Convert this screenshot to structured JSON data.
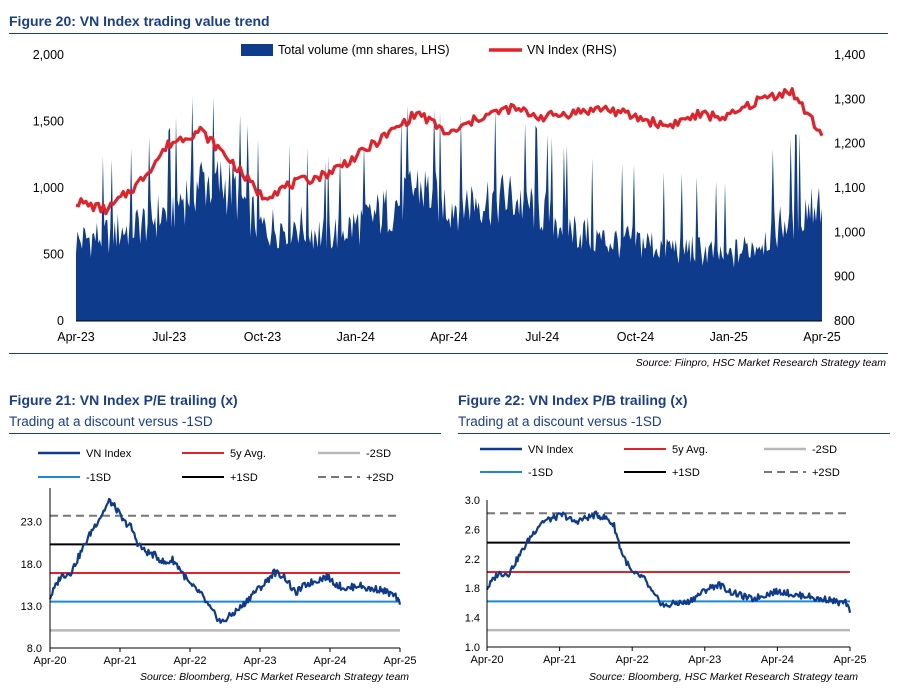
{
  "fig20": {
    "title": "Figure 20: VN Index trading value trend",
    "source": "Source: Fiinpro, HSC Market Research Strategy team"
  },
  "fig21": {
    "title": "Figure 21: VN Index P/E trailing (x)",
    "subtitle": "Trading at a discount versus -1SD",
    "source": "Source: Bloomberg, HSC Market Research Strategy team"
  },
  "fig22": {
    "title": "Figure 22: VN Index P/B trailing (x)",
    "subtitle": "Trading at a discount versus -1SD",
    "source": "Source: Bloomberg, HSC Market Research Strategy team"
  },
  "chart_data": [
    {
      "id": "fig20",
      "type": "area",
      "title": "Figure 20: VN Index trading value trend",
      "x_ticks": [
        "Apr-23",
        "Jul-23",
        "Oct-23",
        "Jan-24",
        "Apr-24",
        "Jul-24",
        "Oct-24",
        "Jan-25",
        "Apr-25"
      ],
      "left_ticks": [
        "0",
        "500",
        "1,000",
        "1,500",
        "2,000"
      ],
      "right_ticks": [
        "800",
        "900",
        "1,000",
        "1,100",
        "1,200",
        "1,300",
        "1,400"
      ],
      "ylim_left": [
        0,
        2000
      ],
      "ylim_right": [
        800,
        1400
      ],
      "legend_position": "top",
      "colors": {
        "volume": "#0f3b8c",
        "index": "#e0232a"
      },
      "series": [
        {
          "name": "Total volume (mn shares, LHS)",
          "axis": "left",
          "x": [
            "2023-04",
            "2023-05",
            "2023-06",
            "2023-07",
            "2023-08",
            "2023-09",
            "2023-10",
            "2023-11",
            "2023-12",
            "2024-01",
            "2024-02",
            "2024-03",
            "2024-04",
            "2024-05",
            "2024-06",
            "2024-07",
            "2024-08",
            "2024-09",
            "2024-10",
            "2024-11",
            "2024-12",
            "2025-01",
            "2025-02",
            "2025-03",
            "2025-04"
          ],
          "values": [
            650,
            700,
            780,
            900,
            1150,
            1100,
            750,
            800,
            700,
            780,
            900,
            1100,
            950,
            1000,
            1000,
            900,
            750,
            650,
            650,
            600,
            580,
            520,
            650,
            850,
            1000
          ]
        },
        {
          "name": "VN Index (RHS)",
          "axis": "right",
          "x": [
            "2023-04",
            "2023-05",
            "2023-06",
            "2023-07",
            "2023-08",
            "2023-09",
            "2023-10",
            "2023-11",
            "2023-12",
            "2024-01",
            "2024-02",
            "2024-03",
            "2024-04",
            "2024-05",
            "2024-06",
            "2024-07",
            "2024-08",
            "2024-09",
            "2024-10",
            "2024-11",
            "2024-12",
            "2025-01",
            "2025-02",
            "2025-03",
            "2025-04"
          ],
          "values": [
            1070,
            1050,
            1110,
            1200,
            1230,
            1160,
            1080,
            1110,
            1130,
            1170,
            1220,
            1270,
            1220,
            1260,
            1280,
            1260,
            1270,
            1280,
            1260,
            1240,
            1265,
            1260,
            1300,
            1320,
            1220
          ]
        }
      ]
    },
    {
      "id": "fig21",
      "type": "line",
      "title": "Figure 21: VN Index P/E trailing (x)",
      "x_ticks": [
        "Apr-20",
        "Apr-21",
        "Apr-22",
        "Apr-23",
        "Apr-24",
        "Apr-25"
      ],
      "y_ticks": [
        "8.0",
        "13.0",
        "18.0",
        "23.0"
      ],
      "ylim": [
        8,
        27
      ],
      "legend_position": "top",
      "colors": {
        "vn": "#0f3b8c",
        "avg": "#e0232a",
        "m2sd": "#b8b8b8",
        "m1sd": "#1a8ad1",
        "p1sd": "#000000",
        "p2sd": "#777777"
      },
      "bands": {
        "avg": 16.9,
        "m1sd": 13.5,
        "m2sd": 10.1,
        "p1sd": 20.3,
        "p2sd": 23.7
      },
      "series": [
        {
          "name": "VN Index",
          "x": [
            2020.25,
            2020.4,
            2020.55,
            2020.7,
            2020.85,
            2021.0,
            2021.1,
            2021.2,
            2021.3,
            2021.4,
            2021.5,
            2021.6,
            2021.75,
            2021.9,
            2022.0,
            2022.1,
            2022.25,
            2022.4,
            2022.55,
            2022.7,
            2022.85,
            2023.0,
            2023.15,
            2023.3,
            2023.45,
            2023.6,
            2023.75,
            2023.9,
            2024.05,
            2024.2,
            2024.35,
            2024.5,
            2024.65,
            2024.8,
            2024.95,
            2025.1,
            2025.2,
            2025.25
          ],
          "values": [
            14.0,
            16.5,
            17.0,
            19.5,
            22.0,
            24.0,
            25.5,
            24.5,
            23.0,
            22.5,
            20.5,
            19.5,
            19.0,
            18.0,
            18.5,
            17.5,
            15.5,
            14.5,
            12.5,
            11.0,
            12.0,
            13.0,
            14.5,
            15.5,
            17.0,
            16.5,
            14.5,
            15.5,
            16.0,
            16.5,
            15.5,
            15.0,
            15.5,
            15.0,
            15.0,
            14.5,
            14.0,
            13.0
          ]
        },
        {
          "name": "5y Avg.",
          "values": [
            16.9
          ]
        },
        {
          "name": "-2SD",
          "values": [
            10.1
          ]
        },
        {
          "name": "-1SD",
          "values": [
            13.5
          ]
        },
        {
          "name": "+1SD",
          "values": [
            20.3
          ]
        },
        {
          "name": "+2SD",
          "values": [
            23.7
          ]
        }
      ]
    },
    {
      "id": "fig22",
      "type": "line",
      "title": "Figure 22: VN Index P/B trailing (x)",
      "x_ticks": [
        "Apr-20",
        "Apr-21",
        "Apr-22",
        "Apr-23",
        "Apr-24",
        "Apr-25"
      ],
      "y_ticks": [
        "1.0",
        "1.4",
        "1.8",
        "2.2",
        "2.6",
        "3.0"
      ],
      "ylim": [
        1.0,
        3.0
      ],
      "legend_position": "top",
      "colors": {
        "vn": "#0f3b8c",
        "avg": "#e0232a",
        "m2sd": "#b8b8b8",
        "m1sd": "#1a8ad1",
        "p1sd": "#000000",
        "p2sd": "#777777"
      },
      "bands": {
        "avg": 2.02,
        "m1sd": 1.62,
        "m2sd": 1.23,
        "p1sd": 2.42,
        "p2sd": 2.82
      },
      "series": [
        {
          "name": "VN Index",
          "x": [
            2020.25,
            2020.4,
            2020.55,
            2020.7,
            2020.85,
            2021.0,
            2021.15,
            2021.3,
            2021.45,
            2021.6,
            2021.75,
            2021.9,
            2022.0,
            2022.1,
            2022.25,
            2022.4,
            2022.55,
            2022.7,
            2022.85,
            2023.0,
            2023.15,
            2023.3,
            2023.45,
            2023.6,
            2023.75,
            2023.9,
            2024.05,
            2024.2,
            2024.35,
            2024.5,
            2024.65,
            2024.8,
            2024.95,
            2025.1,
            2025.2,
            2025.25
          ],
          "values": [
            1.8,
            2.0,
            2.0,
            2.25,
            2.5,
            2.7,
            2.75,
            2.8,
            2.7,
            2.75,
            2.8,
            2.75,
            2.65,
            2.3,
            2.0,
            1.95,
            1.7,
            1.55,
            1.6,
            1.6,
            1.7,
            1.8,
            1.85,
            1.75,
            1.7,
            1.65,
            1.7,
            1.75,
            1.75,
            1.7,
            1.7,
            1.65,
            1.65,
            1.6,
            1.6,
            1.45
          ]
        },
        {
          "name": "5y Avg.",
          "values": [
            2.02
          ]
        },
        {
          "name": "-2SD",
          "values": [
            1.23
          ]
        },
        {
          "name": "-1SD",
          "values": [
            1.62
          ]
        },
        {
          "name": "+1SD",
          "values": [
            2.42
          ]
        },
        {
          "name": "+2SD",
          "values": [
            2.82
          ]
        }
      ]
    }
  ]
}
